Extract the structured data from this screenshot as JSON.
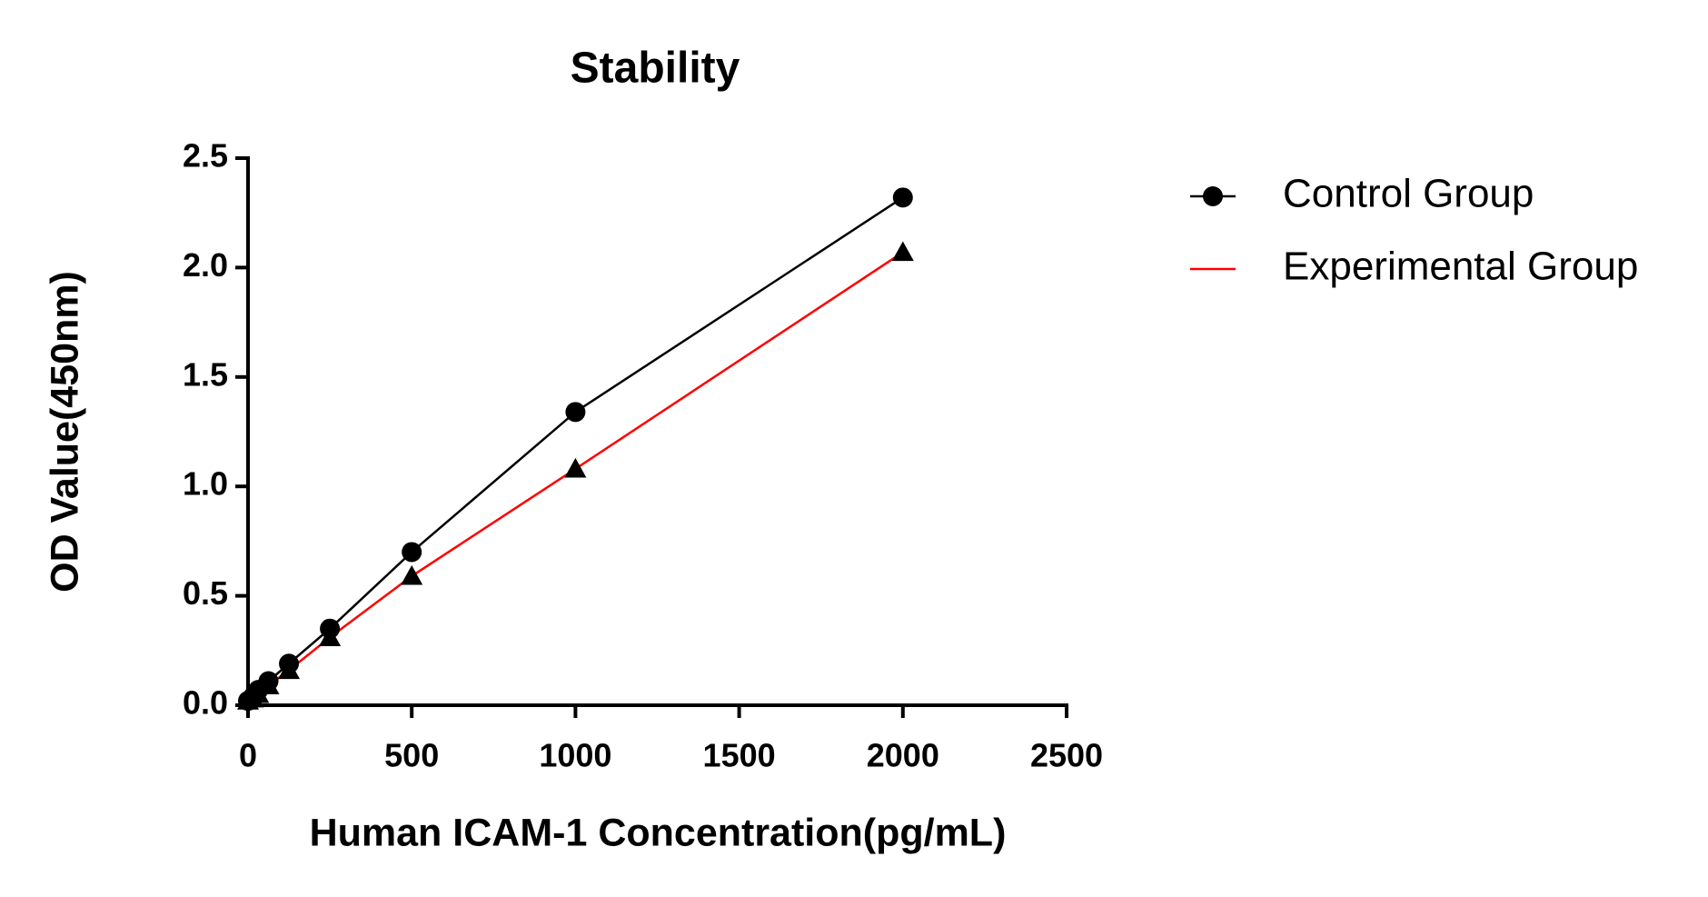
{
  "chart_data": {
    "type": "line",
    "title": "Stability",
    "x_label": "Human ICAM-1 Concentration(pg/mL)",
    "y_label": "OD Value(450nm)",
    "x": [
      0,
      15.6,
      31.25,
      62.5,
      125,
      250,
      500,
      1000,
      2000
    ],
    "series": [
      {
        "name": "Control Group",
        "color": "#000000",
        "marker": "circle",
        "marker_color": "#000000",
        "legend_marker": true,
        "values": [
          0.02,
          0.04,
          0.07,
          0.11,
          0.19,
          0.35,
          0.7,
          1.34,
          2.32
        ]
      },
      {
        "name": "Experimental Group",
        "color": "#ff0000",
        "marker": "triangle",
        "marker_color": "#000000",
        "legend_marker": false,
        "values": [
          0.02,
          0.03,
          0.05,
          0.09,
          0.16,
          0.31,
          0.59,
          1.08,
          2.07
        ]
      }
    ],
    "xlim": [
      0,
      2500
    ],
    "xticks": [
      0,
      500,
      1000,
      1500,
      2000,
      2500
    ],
    "ylim": [
      0,
      2.5
    ],
    "yticks": [
      {
        "value": 0,
        "label": "0.0"
      },
      0.5,
      {
        "value": 1,
        "label": "1.0"
      },
      1.5,
      {
        "value": 2,
        "label": "2.0"
      },
      2.5
    ],
    "grid": false,
    "legend": "right"
  }
}
